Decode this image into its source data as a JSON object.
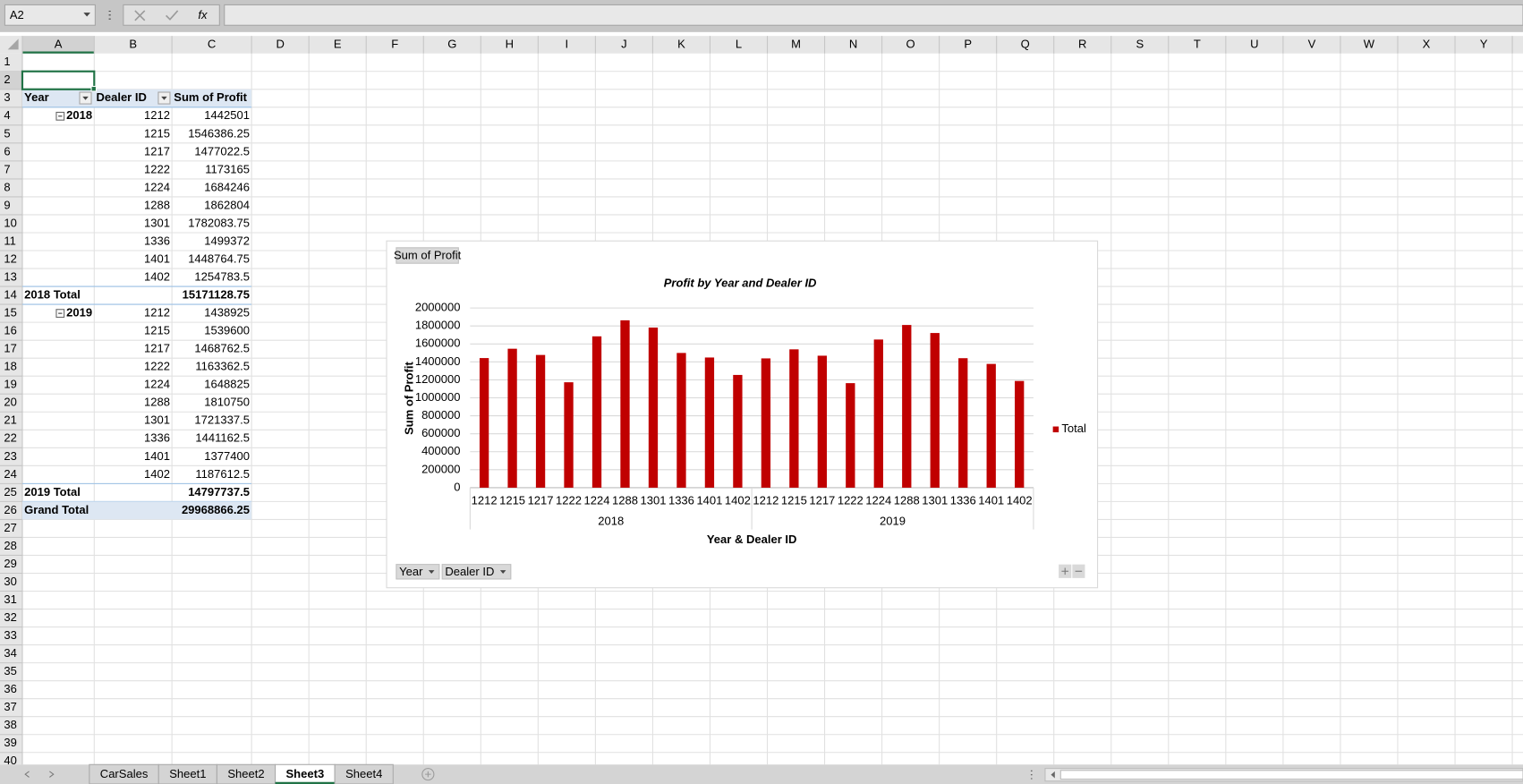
{
  "name_box": "A2",
  "function_label": "fx",
  "columns": [
    "A",
    "B",
    "C",
    "D",
    "E",
    "F",
    "G",
    "H",
    "I",
    "J",
    "K",
    "L",
    "M",
    "N",
    "O",
    "P",
    "Q",
    "R",
    "S",
    "T",
    "U",
    "V",
    "W",
    "X",
    "Y"
  ],
  "row_numbers": [
    1,
    2,
    3,
    4,
    5,
    6,
    7,
    8,
    9,
    10,
    11,
    12,
    13,
    14,
    15,
    16,
    17,
    18,
    19,
    20,
    21,
    22,
    23,
    24,
    25,
    26,
    27,
    28,
    29,
    30,
    31,
    32,
    33,
    34,
    35,
    36,
    37,
    38,
    39,
    40
  ],
  "pivot_table": {
    "headers": [
      "Year",
      "Dealer ID",
      "Sum of Profit"
    ],
    "groups": [
      {
        "year": "2018",
        "dealers": [
          1212,
          1215,
          1217,
          1222,
          1224,
          1288,
          1301,
          1336,
          1401,
          1402
        ],
        "profits": [
          1442501,
          1546386.25,
          1477022.5,
          1173165,
          1684246,
          1862804,
          1782083.75,
          1499372,
          1448764.75,
          1254783.5
        ],
        "total_label": "2018 Total",
        "total": 15171128.75
      },
      {
        "year": "2019",
        "dealers": [
          1212,
          1215,
          1217,
          1222,
          1224,
          1288,
          1301,
          1336,
          1401,
          1402
        ],
        "profits": [
          1438925,
          1539600,
          1468762.5,
          1163362.5,
          1648825,
          1810750,
          1721337.5,
          1441162.5,
          1377400,
          1187612.5
        ],
        "total_label": "2019 Total",
        "total": 14797737.5
      }
    ],
    "grand_total_label": "Grand Total",
    "grand_total": 29968866.25
  },
  "chart_data": {
    "type": "bar",
    "title": "Profit by Year and Dealer ID",
    "value_button": "Sum of Profit",
    "filter_buttons": [
      "Year",
      "Dealer ID"
    ],
    "x_label": "Year & Dealer ID",
    "y_label": "Sum of Profit",
    "categories": [
      "1212",
      "1215",
      "1217",
      "1222",
      "1224",
      "1288",
      "1301",
      "1336",
      "1401",
      "1402",
      "1212",
      "1215",
      "1217",
      "1222",
      "1224",
      "1288",
      "1301",
      "1336",
      "1401",
      "1402"
    ],
    "category_groups": [
      "2018",
      "2019"
    ],
    "series": [
      {
        "name": "Total",
        "color": "#c00000",
        "values": [
          1442501,
          1546386.25,
          1477022.5,
          1173165,
          1684246,
          1862804,
          1782083.75,
          1499372,
          1448764.75,
          1254783.5,
          1438925,
          1539600,
          1468762.5,
          1163362.5,
          1648825,
          1810750,
          1721337.5,
          1441162.5,
          1377400,
          1187612.5
        ]
      }
    ],
    "ylim": [
      0,
      2000000
    ],
    "yticks": [
      0,
      200000,
      400000,
      600000,
      800000,
      1000000,
      1200000,
      1400000,
      1600000,
      1800000,
      2000000
    ],
    "grid": true,
    "legend": "right"
  },
  "sheets": [
    "CarSales",
    "Sheet1",
    "Sheet2",
    "Sheet3",
    "Sheet4"
  ],
  "active_sheet": "Sheet3"
}
